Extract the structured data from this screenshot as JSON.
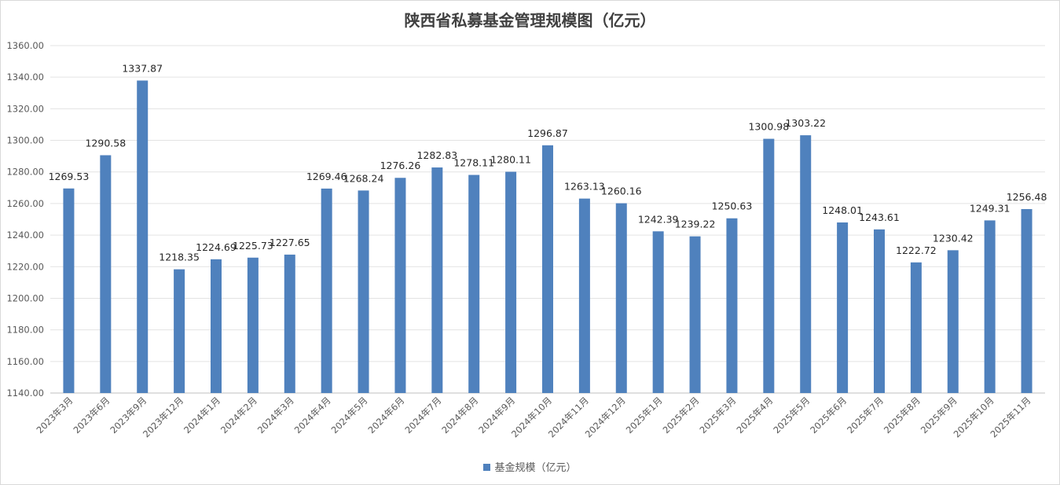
{
  "chart_data": {
    "type": "bar",
    "title": "陕西省私募基金管理规模图（亿元）",
    "categories": [
      "2023年3月",
      "2023年6月",
      "2023年9月",
      "2023年12月",
      "2024年1月",
      "2024年2月",
      "2024年3月",
      "2024年4月",
      "2024年5月",
      "2024年6月",
      "2024年7月",
      "2024年8月",
      "2024年9月",
      "2024年10月",
      "2024年11月",
      "2024年12月",
      "2025年1月",
      "2025年2月",
      "2025年3月",
      "2025年4月",
      "2025年5月",
      "2025年6月",
      "2025年7月",
      "2025年8月",
      "2025年9月",
      "2025年10月",
      "2025年11月"
    ],
    "series": [
      {
        "name": "基金规模（亿元）",
        "values": [
          1269.53,
          1290.58,
          1337.87,
          1218.35,
          1224.69,
          1225.73,
          1227.65,
          1269.46,
          1268.24,
          1276.26,
          1282.83,
          1278.11,
          1280.11,
          1296.87,
          1263.13,
          1260.16,
          1242.39,
          1239.22,
          1250.63,
          1300.98,
          1303.22,
          1248.01,
          1243.61,
          1222.72,
          1230.42,
          1249.31,
          1256.48
        ],
        "color": "#4f81bd"
      }
    ],
    "ylim": [
      1140,
      1360
    ],
    "yticks": [
      "1140.00",
      "1160.00",
      "1180.00",
      "1200.00",
      "1220.00",
      "1240.00",
      "1260.00",
      "1280.00",
      "1300.00",
      "1320.00",
      "1340.00",
      "1360.00"
    ],
    "grid": true,
    "legend": "bottom"
  }
}
